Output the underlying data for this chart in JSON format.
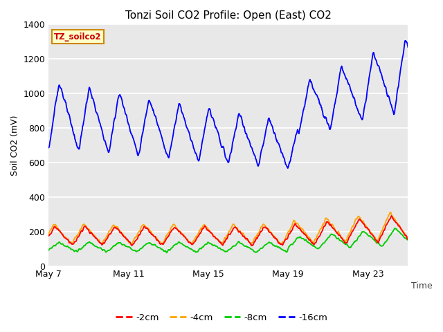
{
  "title": "Tonzi Soil CO2 Profile: Open (East) CO2",
  "ylabel": "Soil CO2 (mV)",
  "xlabel": "Time",
  "label_box_text": "TZ_soilco2",
  "background_color": "#ffffff",
  "plot_bg_color": "#e8e8e8",
  "grid_color": "#ffffff",
  "ylim": [
    0,
    1400
  ],
  "yticks": [
    0,
    200,
    400,
    600,
    800,
    1000,
    1200,
    1400
  ],
  "xtick_labels": [
    "May 7",
    "May 11",
    "May 15",
    "May 19",
    "May 23"
  ],
  "xtick_pos": [
    0,
    4,
    8,
    12,
    16
  ],
  "xlim": [
    0,
    18
  ],
  "legend_entries": [
    "-2cm",
    "-4cm",
    "-8cm",
    "-16cm"
  ],
  "line_colors": [
    "#ff0000",
    "#ffa500",
    "#00cc00",
    "#0000ff"
  ],
  "line_width": 1.3,
  "title_fontsize": 11,
  "tick_fontsize": 9,
  "label_fontsize": 9
}
